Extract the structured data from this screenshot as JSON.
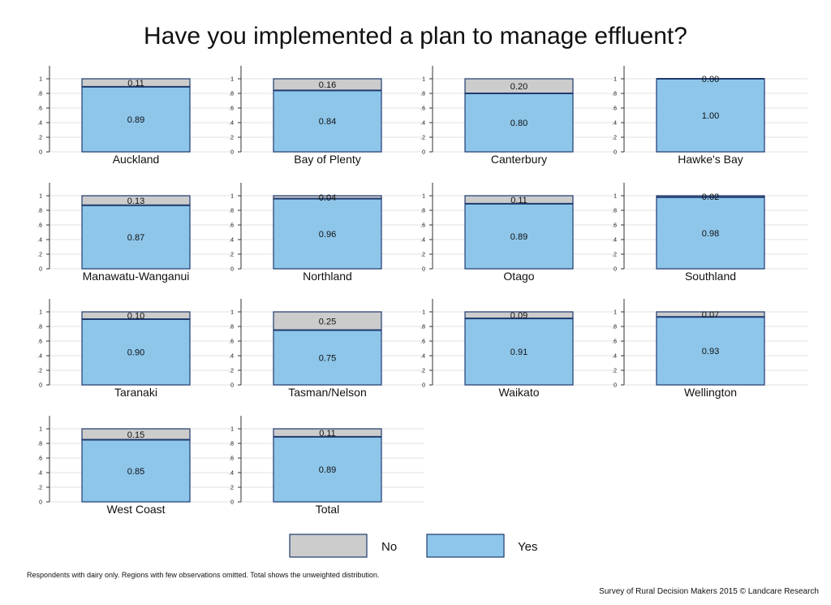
{
  "chart_data": {
    "type": "bar",
    "title": "Have you implemented a plan to manage effluent?",
    "layout": "small-multiples stacked bar, 4 columns",
    "ylim": [
      0,
      1
    ],
    "yticks": [
      "0",
      ".2",
      ".4",
      ".6",
      ".8",
      "1"
    ],
    "grid": true,
    "legend_placement": "bottom",
    "series": [
      {
        "name": "No",
        "color": "#cccccc"
      },
      {
        "name": "Yes",
        "color": "#8ec6ea"
      }
    ],
    "panels": [
      {
        "category": "Auckland",
        "yes": 0.89,
        "no": 0.11,
        "yes_label": "0.89",
        "no_label": "0.11"
      },
      {
        "category": "Bay of Plenty",
        "yes": 0.84,
        "no": 0.16,
        "yes_label": "0.84",
        "no_label": "0.16"
      },
      {
        "category": "Canterbury",
        "yes": 0.8,
        "no": 0.2,
        "yes_label": "0.80",
        "no_label": "0.20"
      },
      {
        "category": "Hawke's Bay",
        "yes": 1.0,
        "no": 0.0,
        "yes_label": "1.00",
        "no_label": "0.00"
      },
      {
        "category": "Manawatu-Wanganui",
        "yes": 0.87,
        "no": 0.13,
        "yes_label": "0.87",
        "no_label": "0.13"
      },
      {
        "category": "Northland",
        "yes": 0.96,
        "no": 0.04,
        "yes_label": "0.96",
        "no_label": "0.04"
      },
      {
        "category": "Otago",
        "yes": 0.89,
        "no": 0.11,
        "yes_label": "0.89",
        "no_label": "0.11"
      },
      {
        "category": "Southland",
        "yes": 0.98,
        "no": 0.02,
        "yes_label": "0.98",
        "no_label": "0.02"
      },
      {
        "category": "Taranaki",
        "yes": 0.9,
        "no": 0.1,
        "yes_label": "0.90",
        "no_label": "0.10"
      },
      {
        "category": "Tasman/Nelson",
        "yes": 0.75,
        "no": 0.25,
        "yes_label": "0.75",
        "no_label": "0.25"
      },
      {
        "category": "Waikato",
        "yes": 0.91,
        "no": 0.09,
        "yes_label": "0.91",
        "no_label": "0.09"
      },
      {
        "category": "Wellington",
        "yes": 0.93,
        "no": 0.07,
        "yes_label": "0.93",
        "no_label": "0.07"
      },
      {
        "category": "West Coast",
        "yes": 0.85,
        "no": 0.15,
        "yes_label": "0.85",
        "no_label": "0.15"
      },
      {
        "category": "Total",
        "yes": 0.89,
        "no": 0.11,
        "yes_label": "0.89",
        "no_label": "0.11"
      }
    ],
    "footnote": "Respondents with dairy only. Regions with few observations omitted. Total shows the unweighted distribution.",
    "credit": "Survey of Rural Decision Makers 2015 © Landcare Research"
  }
}
